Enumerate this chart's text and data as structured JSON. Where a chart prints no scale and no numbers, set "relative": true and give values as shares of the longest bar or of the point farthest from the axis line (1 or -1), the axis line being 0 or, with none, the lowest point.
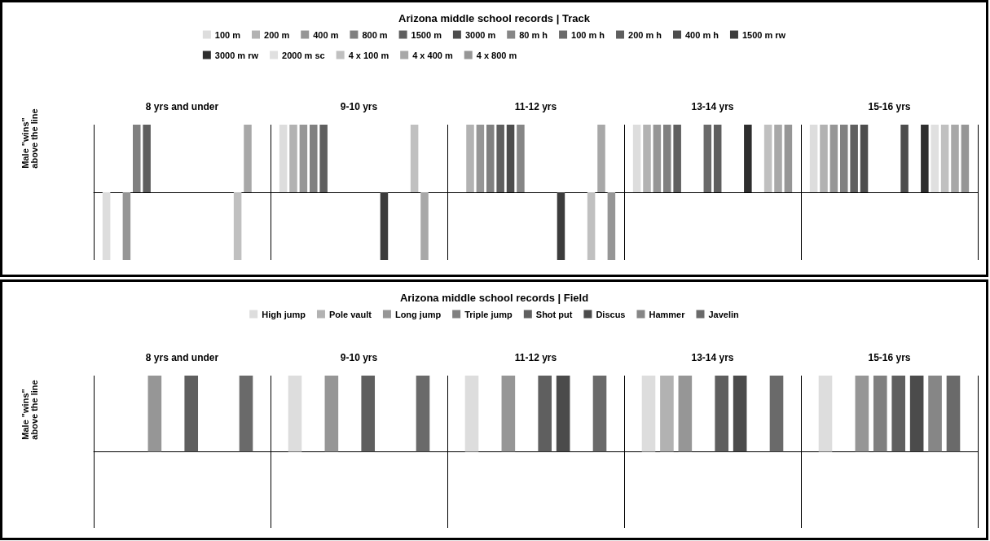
{
  "chart_data": [
    {
      "type": "bar",
      "title": "Arizona middle school records | Track",
      "ylabel": "Male \"wins\" above the line",
      "relative": true,
      "legend": "top",
      "grid": "x",
      "categories": [
        "8 yrs and under",
        "9-10 yrs",
        "11-12 yrs",
        "13-14 yrs",
        "15-16 yrs"
      ],
      "series": [
        {
          "name": "100 m",
          "color": "#dddddd",
          "values": [
            -1,
            1,
            null,
            1,
            1
          ]
        },
        {
          "name": "200 m",
          "color": "#b2b2b2",
          "values": [
            null,
            1,
            1,
            1,
            1
          ]
        },
        {
          "name": "400 m",
          "color": "#969696",
          "values": [
            -1,
            1,
            1,
            1,
            1
          ]
        },
        {
          "name": "800 m",
          "color": "#808080",
          "values": [
            1,
            1,
            1,
            1,
            1
          ]
        },
        {
          "name": "1500 m",
          "color": "#5f5f5f",
          "values": [
            1,
            1,
            1,
            1,
            1
          ]
        },
        {
          "name": "3000 m",
          "color": "#4d4d4d",
          "values": [
            null,
            null,
            1,
            null,
            1
          ]
        },
        {
          "name": "80 m h",
          "color": "#868686",
          "values": [
            null,
            null,
            1,
            null,
            null
          ]
        },
        {
          "name": "100 m h",
          "color": "#6a6a6a",
          "values": [
            null,
            null,
            null,
            1,
            null
          ]
        },
        {
          "name": "200 m h",
          "color": "#5f5f5f",
          "values": [
            null,
            null,
            null,
            1,
            null
          ]
        },
        {
          "name": "400 m h",
          "color": "#4d4d4d",
          "values": [
            null,
            null,
            null,
            null,
            1
          ]
        },
        {
          "name": "1500 m rw",
          "color": "#3c3c3c",
          "values": [
            null,
            -1,
            -1,
            null,
            null
          ]
        },
        {
          "name": "3000 m rw",
          "color": "#2e2e2e",
          "values": [
            null,
            null,
            null,
            1,
            1
          ]
        },
        {
          "name": "2000 m sc",
          "color": "#e0e0e0",
          "values": [
            null,
            null,
            null,
            null,
            1
          ]
        },
        {
          "name": "4 x 100 m",
          "color": "#c0c0c0",
          "values": [
            -1,
            1,
            -1,
            1,
            1
          ]
        },
        {
          "name": "4 x 400 m",
          "color": "#a8a8a8",
          "values": [
            1,
            -1,
            1,
            1,
            1
          ]
        },
        {
          "name": "4 x 800 m",
          "color": "#969696",
          "values": [
            null,
            null,
            -1,
            1,
            1
          ]
        }
      ]
    },
    {
      "type": "bar",
      "title": "Arizona middle school records | Field",
      "ylabel": "Male \"wins\" above the line",
      "relative": true,
      "legend": "top",
      "grid": "x",
      "categories": [
        "8 yrs and under",
        "9-10 yrs",
        "11-12 yrs",
        "13-14 yrs",
        "15-16 yrs"
      ],
      "series": [
        {
          "name": "High jump",
          "color": "#dddddd",
          "values": [
            null,
            1,
            1,
            1,
            1
          ]
        },
        {
          "name": "Pole vault",
          "color": "#b2b2b2",
          "values": [
            null,
            null,
            null,
            1,
            null
          ]
        },
        {
          "name": "Long jump",
          "color": "#969696",
          "values": [
            1,
            1,
            1,
            1,
            1
          ]
        },
        {
          "name": "Triple jump",
          "color": "#808080",
          "values": [
            null,
            null,
            null,
            null,
            1
          ]
        },
        {
          "name": "Shot put",
          "color": "#5f5f5f",
          "values": [
            1,
            1,
            1,
            1,
            1
          ]
        },
        {
          "name": "Discus",
          "color": "#4b4b4b",
          "values": [
            null,
            null,
            1,
            1,
            1
          ]
        },
        {
          "name": "Hammer",
          "color": "#868686",
          "values": [
            null,
            null,
            null,
            null,
            1
          ]
        },
        {
          "name": "Javelin",
          "color": "#6a6a6a",
          "values": [
            1,
            1,
            1,
            1,
            1
          ]
        }
      ]
    }
  ]
}
